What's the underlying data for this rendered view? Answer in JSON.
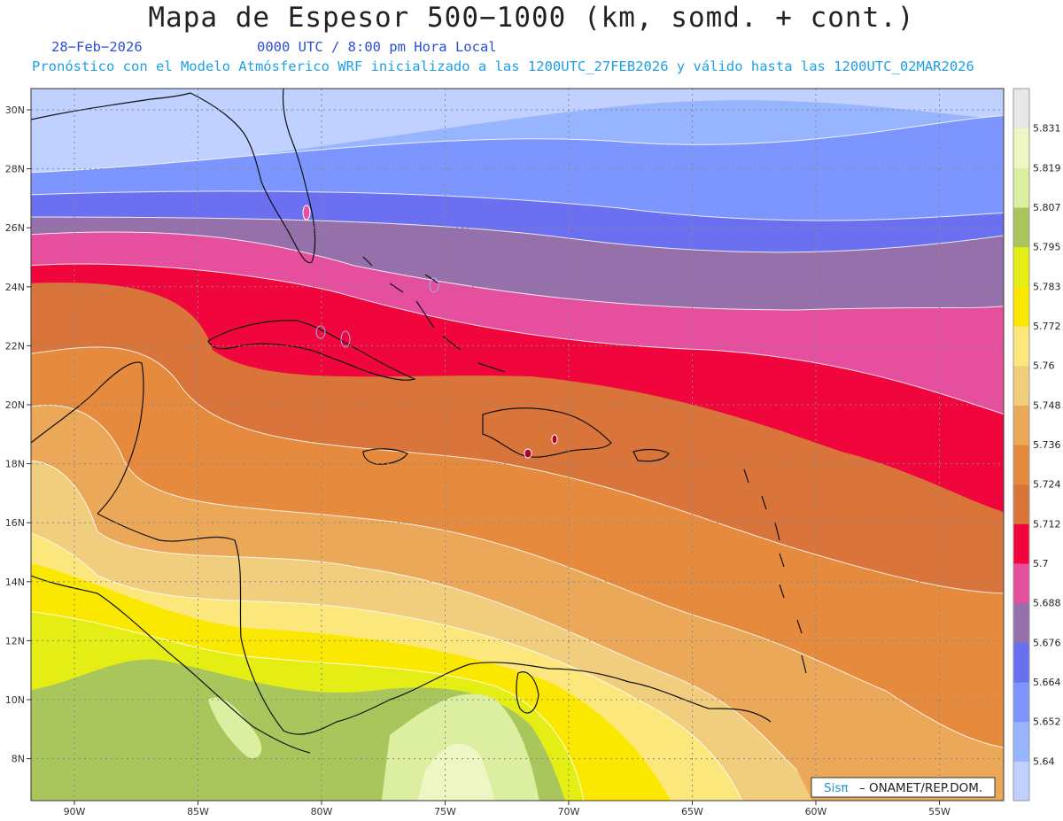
{
  "header": {
    "title": "Mapa de Espesor 500−1000 (km, somd. + cont.)",
    "date": "28−Feb−2026",
    "time": "0000 UTC / 8:00 pm Hora Local",
    "forecast": "Pronóstico con el Modelo Atmósferico WRF inicializado a las 1200UTC_27FEB2026 y válido hasta las  1200UTC_02MAR2026"
  },
  "map": {
    "lat_labels": [
      "30N",
      "28N",
      "26N",
      "24N",
      "22N",
      "20N",
      "18N",
      "16N",
      "14N",
      "12N",
      "10N",
      "8N"
    ],
    "lon_labels": [
      "90W",
      "85W",
      "80W",
      "75W",
      "70W",
      "65W",
      "60W",
      "55W"
    ],
    "credit_brand": "Sisπ",
    "credit_text": "– ONAMET/REP.DOM."
  },
  "colorbar": {
    "labels": [
      "5.831",
      "5.819",
      "5.807",
      "5.795",
      "5.783",
      "5.772",
      "5.76",
      "5.748",
      "5.736",
      "5.724",
      "5.712",
      "5.7",
      "5.688",
      "5.676",
      "5.664",
      "5.652",
      "5.64"
    ],
    "colors": [
      "#c0d0ff",
      "#97b4ff",
      "#7d96ff",
      "#6a70ef",
      "#9670aa",
      "#e54f9e",
      "#f0063c",
      "#d9743a",
      "#e68a3e",
      "#eba858",
      "#f1cd7e",
      "#fbe77c",
      "#fbe800",
      "#e4ee14",
      "#a9c65c",
      "#dcefa0",
      "#eef6c4",
      "#e8e8e8"
    ]
  }
}
